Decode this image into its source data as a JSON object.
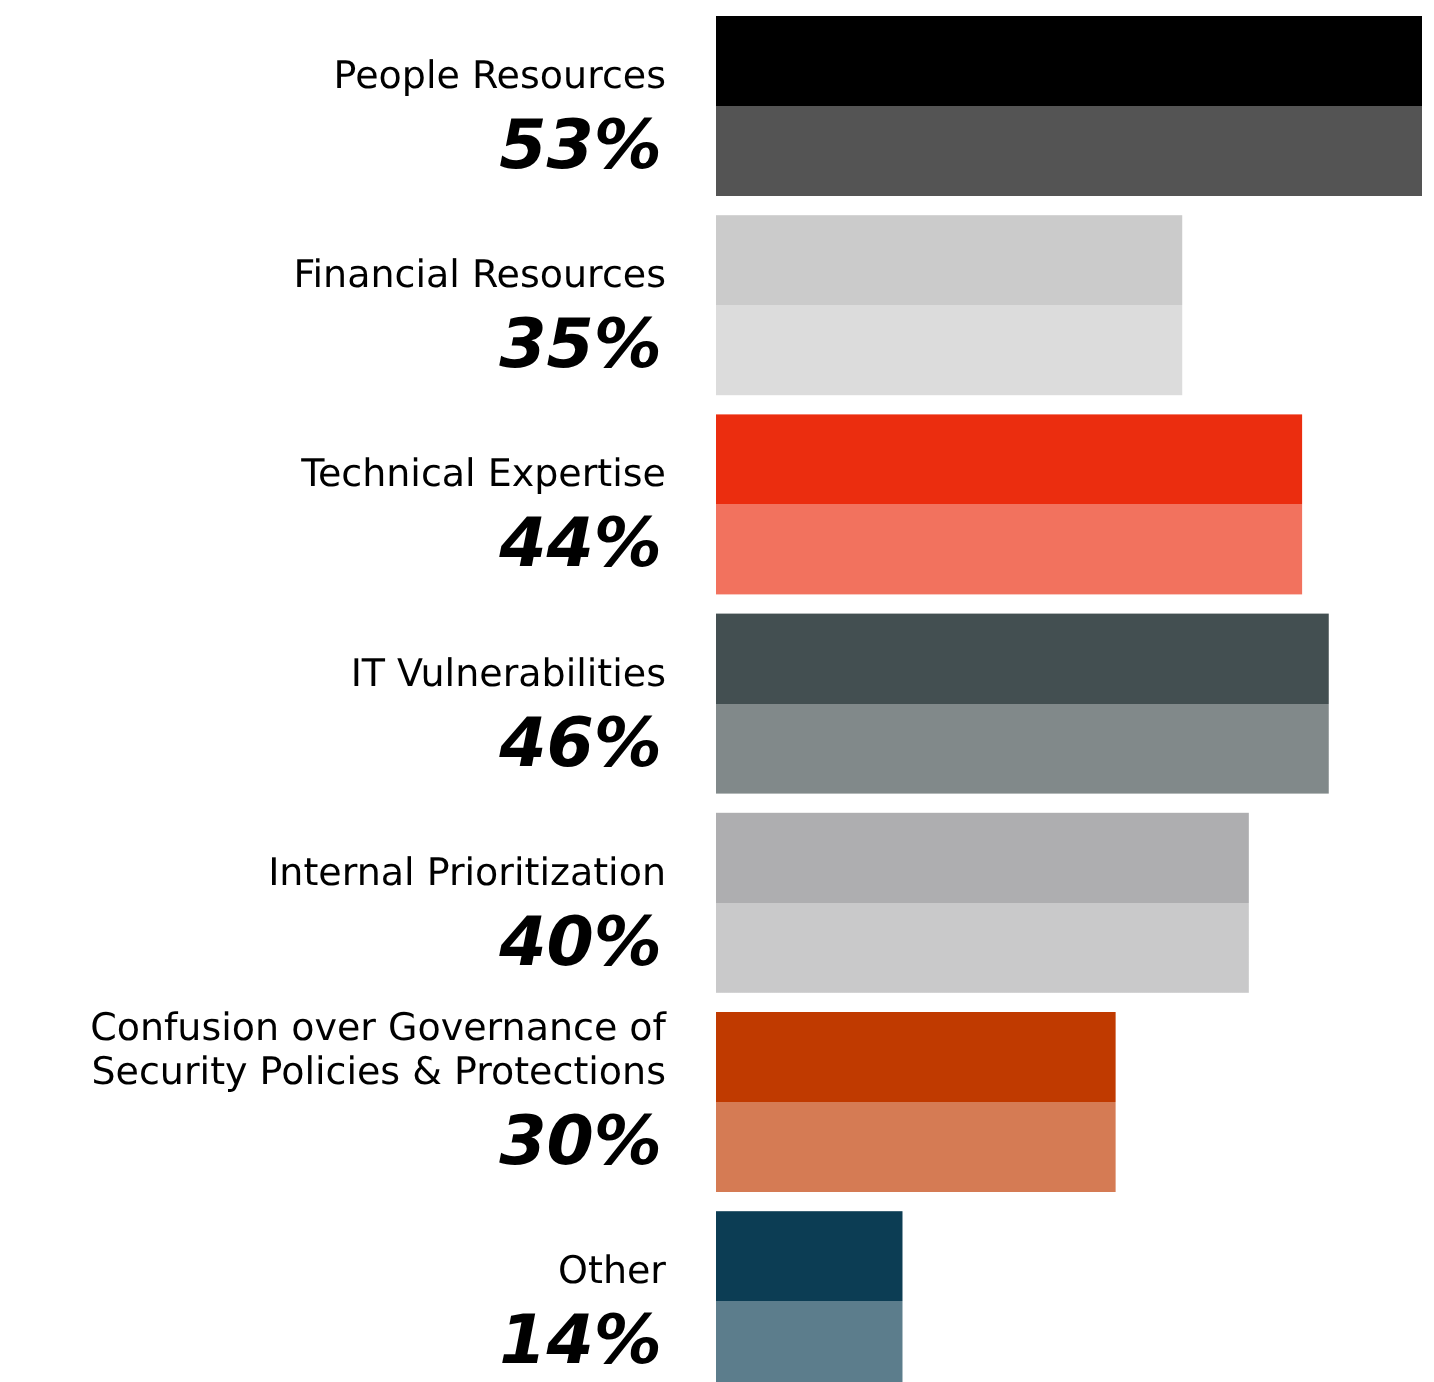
{
  "chart_data": {
    "type": "bar",
    "orientation": "horizontal",
    "categories": [
      "People Resources",
      "Financial Resources",
      "Technical Expertise",
      "IT Vulnerabilities",
      "Internal Prioritization",
      "Confusion over Governance of Security Policies & Protections",
      "Other"
    ],
    "values": [
      53,
      35,
      44,
      46,
      40,
      30,
      14
    ],
    "value_labels": [
      "53%",
      "35%",
      "44%",
      "46%",
      "40%",
      "30%",
      "14%"
    ],
    "colors": [
      "#000000",
      "#cbcbcb",
      "#eb2d0f",
      "#434f51",
      "#aeaeb0",
      "#c03a00",
      "#0c3d54"
    ]
  }
}
